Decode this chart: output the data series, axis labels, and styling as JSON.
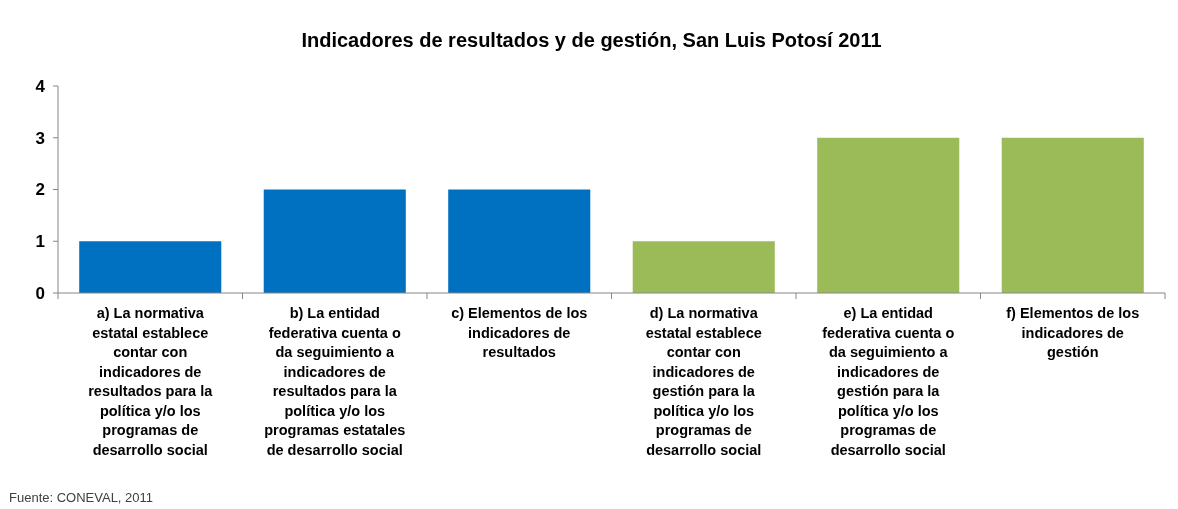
{
  "chart_data": {
    "type": "bar",
    "title": "Indicadores de resultados y de gestión, San Luis Potosí 2011",
    "categories": [
      "a) La normativa estatal establece contar con indicadores de resultados para la política y/o los programas de desarrollo social",
      "b) La entidad federativa cuenta o da seguimiento a indicadores de resultados para la política y/o los programas estatales de desarrollo social",
      "c) Elementos de los indicadores de resultados",
      "d) La normativa estatal establece contar con indicadores de gestión para la política y/o los programas de desarrollo social",
      "e) La entidad federativa cuenta o da seguimiento a indicadores de gestión para la política y/o los programas de desarrollo social",
      "f) Elementos de los indicadores de gestión"
    ],
    "values": [
      1,
      2,
      2,
      1,
      3,
      3
    ],
    "colors": [
      "#0070c0",
      "#0070c0",
      "#0070c0",
      "#9bbb59",
      "#9bbb59",
      "#9bbb59"
    ],
    "ylim": [
      0,
      4
    ],
    "yticks": [
      0,
      1,
      2,
      3,
      4
    ],
    "grid": false,
    "annotations": [
      "Fuente: CONEVAL, 2011"
    ]
  }
}
